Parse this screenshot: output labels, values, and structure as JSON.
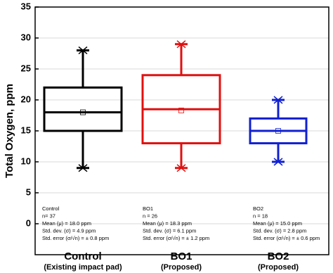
{
  "chart_data": {
    "type": "box",
    "y_label": "Total Oxygen, ppm",
    "categories": [
      "Control",
      "BO1",
      "BO2"
    ],
    "category_subtitles": [
      "(Existing impact pad)",
      "(Proposed)",
      "(Proposed)"
    ],
    "boxes": [
      {
        "color": "#000000",
        "min": 9,
        "q1": 15,
        "median": 18,
        "q3": 22,
        "max": 28,
        "mean": 18
      },
      {
        "color": "#e01010",
        "min": 9,
        "q1": 13,
        "median": 18.5,
        "q3": 24,
        "max": 29,
        "mean": 18.3
      },
      {
        "color": "#1020d0",
        "min": 10,
        "q1": 13,
        "median": 15,
        "q3": 17,
        "max": 20,
        "mean": 15
      }
    ],
    "stats": [
      [
        "Control",
        "n= 37",
        "Mean (μ) = 18.0 ppm",
        "Std. dev. (σ) = 4.9 ppm",
        "Std. error (σ/√n) = ± 0.8 ppm"
      ],
      [
        "BO1",
        "n = 26",
        "Mean (μ) = 18.3 ppm",
        "Std. dev. (σ) = 6.1 ppm",
        "Std. error (σ/√n) = ± 1.2 ppm"
      ],
      [
        "BO2",
        "n = 18",
        "Mean (μ) = 15.0 ppm",
        "Std. dev. (σ) = 2.8 ppm",
        "Std. error (σ/√n) = ± 0.6 ppm"
      ]
    ],
    "ylim": [
      -5,
      35
    ],
    "yticks": [
      0,
      5,
      10,
      15,
      20,
      25,
      30,
      35
    ],
    "grid": true
  }
}
